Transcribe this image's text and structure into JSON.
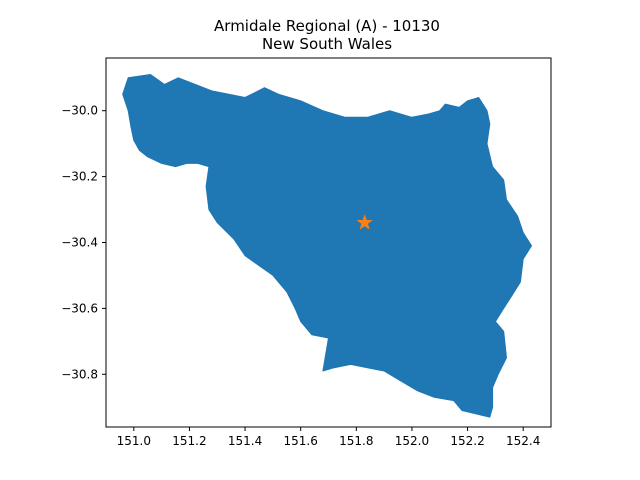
{
  "chart_data": {
    "type": "map",
    "title": "Armidale Regional (A) - 10130",
    "subtitle": "New South Wales",
    "xlabel": "",
    "ylabel": "",
    "xlim": [
      150.9,
      152.5
    ],
    "ylim": [
      -30.96,
      -29.84
    ],
    "x_ticks": [
      "151.0",
      "151.2",
      "151.4",
      "151.6",
      "151.8",
      "152.0",
      "152.2",
      "152.4"
    ],
    "y_ticks": [
      "−30.0",
      "−30.2",
      "−30.4",
      "−30.6",
      "−30.8"
    ],
    "grid": false,
    "region_color": "#1f77b4",
    "marker": {
      "shape": "star",
      "lon": 151.83,
      "lat": -30.34,
      "color": "#ff7f0e"
    },
    "boundary": [
      [
        150.98,
        -29.9
      ],
      [
        151.06,
        -29.89
      ],
      [
        151.11,
        -29.92
      ],
      [
        151.16,
        -29.9
      ],
      [
        151.22,
        -29.92
      ],
      [
        151.28,
        -29.94
      ],
      [
        151.4,
        -29.96
      ],
      [
        151.47,
        -29.93
      ],
      [
        151.52,
        -29.95
      ],
      [
        151.6,
        -29.97
      ],
      [
        151.68,
        -30.0
      ],
      [
        151.76,
        -30.02
      ],
      [
        151.84,
        -30.02
      ],
      [
        151.92,
        -30.0
      ],
      [
        152.0,
        -30.02
      ],
      [
        152.06,
        -30.01
      ],
      [
        152.1,
        -30.0
      ],
      [
        152.12,
        -29.98
      ],
      [
        152.17,
        -29.99
      ],
      [
        152.2,
        -29.97
      ],
      [
        152.24,
        -29.96
      ],
      [
        152.27,
        -30.0
      ],
      [
        152.28,
        -30.04
      ],
      [
        152.27,
        -30.1
      ],
      [
        152.29,
        -30.17
      ],
      [
        152.33,
        -30.21
      ],
      [
        152.34,
        -30.27
      ],
      [
        152.38,
        -30.32
      ],
      [
        152.4,
        -30.37
      ],
      [
        152.43,
        -30.41
      ],
      [
        152.4,
        -30.45
      ],
      [
        152.39,
        -30.52
      ],
      [
        152.36,
        -30.56
      ],
      [
        152.33,
        -30.6
      ],
      [
        152.3,
        -30.64
      ],
      [
        152.33,
        -30.67
      ],
      [
        152.34,
        -30.75
      ],
      [
        152.31,
        -30.8
      ],
      [
        152.29,
        -30.84
      ],
      [
        152.29,
        -30.9
      ],
      [
        152.28,
        -30.93
      ],
      [
        152.18,
        -30.91
      ],
      [
        152.15,
        -30.88
      ],
      [
        152.08,
        -30.87
      ],
      [
        152.02,
        -30.85
      ],
      [
        151.96,
        -30.82
      ],
      [
        151.9,
        -30.79
      ],
      [
        151.84,
        -30.78
      ],
      [
        151.78,
        -30.77
      ],
      [
        151.72,
        -30.78
      ],
      [
        151.68,
        -30.79
      ],
      [
        151.69,
        -30.74
      ],
      [
        151.7,
        -30.69
      ],
      [
        151.64,
        -30.68
      ],
      [
        151.6,
        -30.64
      ],
      [
        151.58,
        -30.6
      ],
      [
        151.55,
        -30.55
      ],
      [
        151.5,
        -30.5
      ],
      [
        151.45,
        -30.47
      ],
      [
        151.4,
        -30.44
      ],
      [
        151.36,
        -30.39
      ],
      [
        151.3,
        -30.34
      ],
      [
        151.27,
        -30.3
      ],
      [
        151.26,
        -30.23
      ],
      [
        151.27,
        -30.17
      ],
      [
        151.23,
        -30.16
      ],
      [
        151.19,
        -30.16
      ],
      [
        151.15,
        -30.17
      ],
      [
        151.1,
        -30.16
      ],
      [
        151.05,
        -30.14
      ],
      [
        151.02,
        -30.12
      ],
      [
        151.0,
        -30.09
      ],
      [
        150.99,
        -30.05
      ],
      [
        150.98,
        -30.0
      ],
      [
        150.96,
        -29.95
      ]
    ]
  }
}
